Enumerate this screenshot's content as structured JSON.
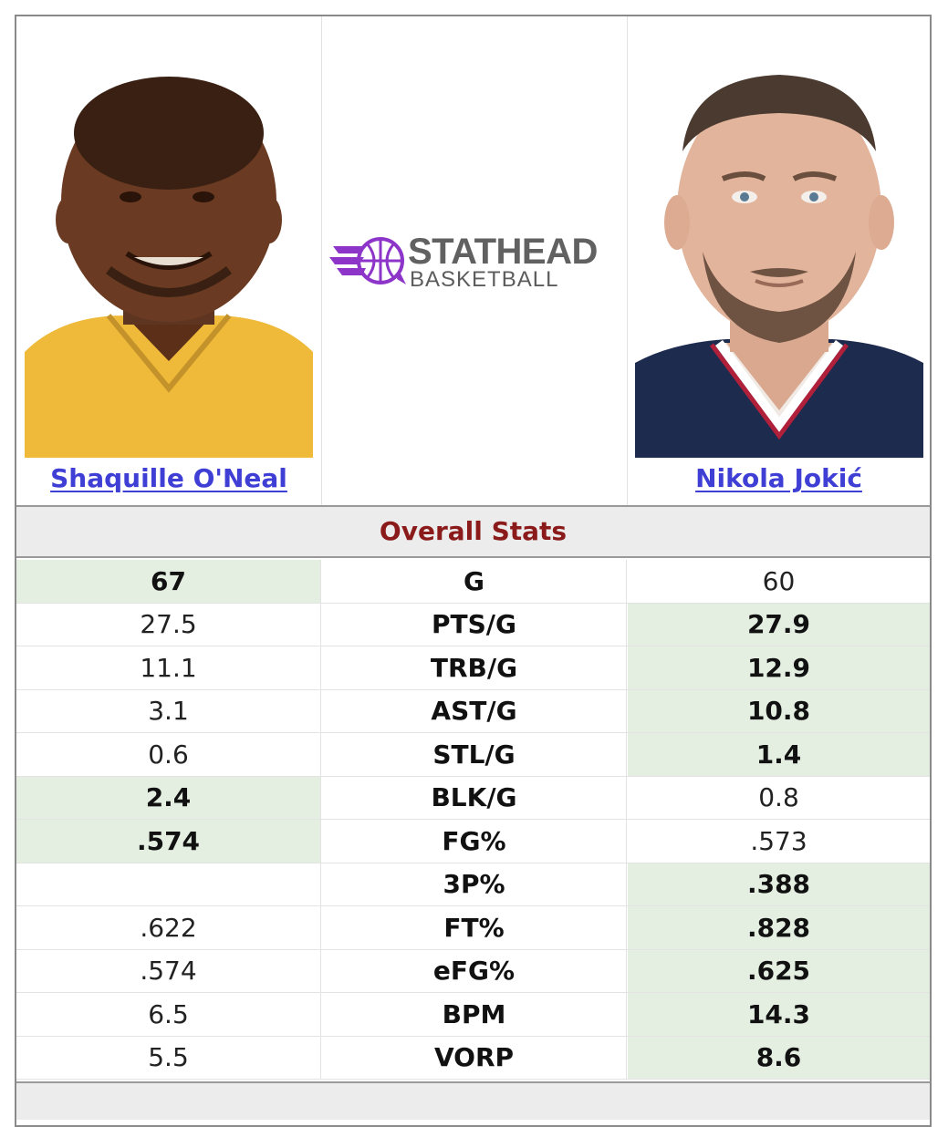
{
  "players": {
    "left": {
      "name": "Shaquille O'Neal",
      "photo": "player-photo-oneal"
    },
    "right": {
      "name": "Nikola Jokić",
      "photo": "player-photo-jokic"
    }
  },
  "logo": {
    "word": "STATHEAD",
    "sub": "BASKETBALL",
    "icon": "stathead-basketball-logo-icon",
    "accent": "#8e35c9"
  },
  "section_title": "Overall Stats",
  "colors": {
    "winner_bg": "#e4efe2",
    "title": "#8b1a1a",
    "link": "#3f3fd6"
  },
  "stats": [
    {
      "label": "G",
      "left": "67",
      "right": "60",
      "winner": "left"
    },
    {
      "label": "PTS/G",
      "left": "27.5",
      "right": "27.9",
      "winner": "right"
    },
    {
      "label": "TRB/G",
      "left": "11.1",
      "right": "12.9",
      "winner": "right"
    },
    {
      "label": "AST/G",
      "left": "3.1",
      "right": "10.8",
      "winner": "right"
    },
    {
      "label": "STL/G",
      "left": "0.6",
      "right": "1.4",
      "winner": "right"
    },
    {
      "label": "BLK/G",
      "left": "2.4",
      "right": "0.8",
      "winner": "left"
    },
    {
      "label": "FG%",
      "left": ".574",
      "right": ".573",
      "winner": "left"
    },
    {
      "label": "3P%",
      "left": "",
      "right": ".388",
      "winner": "right"
    },
    {
      "label": "FT%",
      "left": ".622",
      "right": ".828",
      "winner": "right"
    },
    {
      "label": "eFG%",
      "left": ".574",
      "right": ".625",
      "winner": "right"
    },
    {
      "label": "BPM",
      "left": "6.5",
      "right": "14.3",
      "winner": "right"
    },
    {
      "label": "VORP",
      "left": "5.5",
      "right": "8.6",
      "winner": "right"
    }
  ]
}
